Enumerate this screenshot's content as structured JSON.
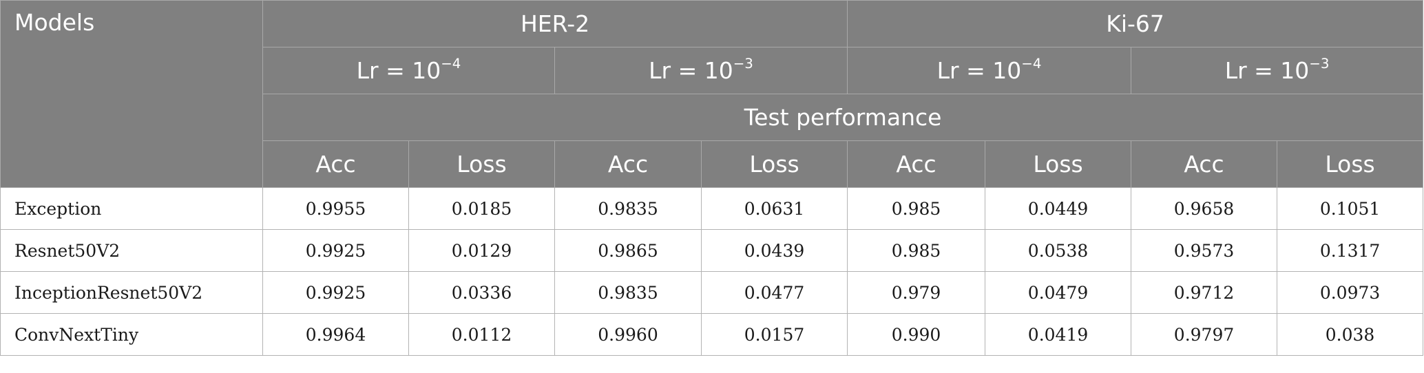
{
  "header": {
    "models_label": "Models",
    "groups": [
      {
        "name": "HER-2",
        "lrs": [
          {
            "base": "Lr = 10",
            "exp": "−4"
          },
          {
            "base": "Lr = 10",
            "exp": "−3"
          }
        ]
      },
      {
        "name": "Ki-67",
        "lrs": [
          {
            "base": "Lr = 10",
            "exp": "−4"
          },
          {
            "base": "Lr = 10",
            "exp": "−3"
          }
        ]
      }
    ],
    "test_performance": "Test performance",
    "metrics": [
      "Acc",
      "Loss",
      "Acc",
      "Loss",
      "Acc",
      "Loss",
      "Acc",
      "Loss"
    ]
  },
  "rows": [
    {
      "model": "Exception",
      "values": [
        "0.9955",
        "0.0185",
        "0.9835",
        "0.0631",
        "0.985",
        "0.0449",
        "0.9658",
        "0.1051"
      ]
    },
    {
      "model": "Resnet50V2",
      "values": [
        "0.9925",
        "0.0129",
        "0.9865",
        "0.0439",
        "0.985",
        "0.0538",
        "0.9573",
        "0.1317"
      ]
    },
    {
      "model": "InceptionResnet50V2",
      "values": [
        "0.9925",
        "0.0336",
        "0.9835",
        "0.0477",
        "0.979",
        "0.0479",
        "0.9712",
        "0.0973"
      ]
    },
    {
      "model": "ConvNextTiny",
      "values": [
        "0.9964",
        "0.0112",
        "0.9960",
        "0.0157",
        "0.990",
        "0.0419",
        "0.9797",
        "0.038"
      ]
    }
  ]
}
